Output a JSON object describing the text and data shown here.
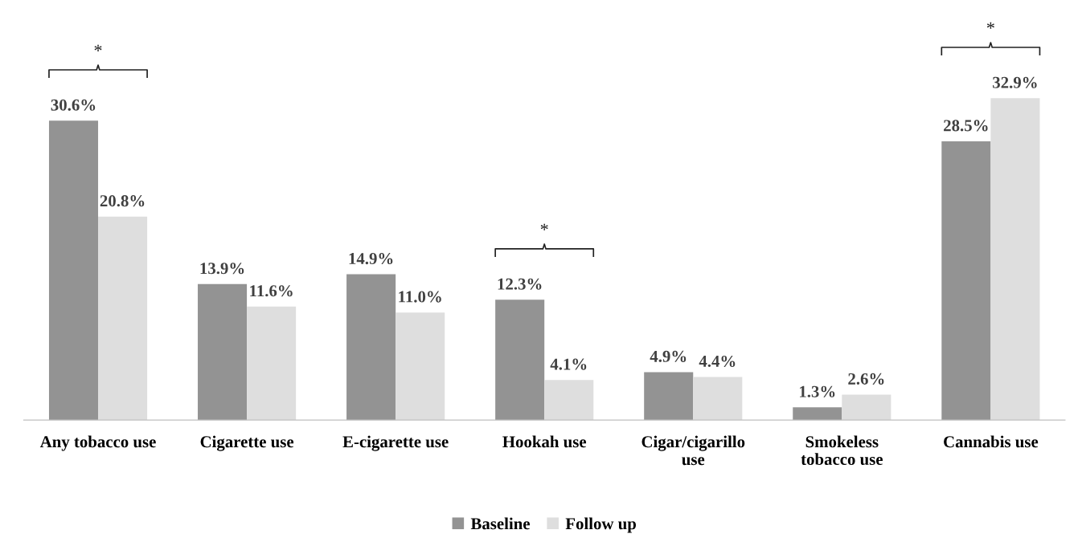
{
  "chart_data": {
    "type": "bar",
    "categories": [
      "Any tobacco use",
      "Cigarette use",
      "E-cigarette use",
      "Hookah use",
      "Cigar/cigarillo\nuse",
      "Smokeless\ntobacco use",
      "Cannabis use"
    ],
    "series": [
      {
        "name": "Baseline",
        "color": "#939393",
        "values": [
          30.6,
          13.9,
          14.9,
          12.3,
          4.9,
          1.3,
          28.5
        ],
        "value_labels": [
          "30.6%",
          "13.9%",
          "14.9%",
          "12.3%",
          "4.9%",
          "1.3%",
          "28.5%"
        ]
      },
      {
        "name": "Follow up",
        "color": "#dedede",
        "values": [
          20.8,
          11.6,
          11.0,
          4.1,
          4.4,
          2.6,
          32.9
        ],
        "value_labels": [
          "20.8%",
          "11.6%",
          "11.0%",
          "4.1%",
          "4.4%",
          "2.6%",
          "32.9%"
        ]
      }
    ],
    "annotations": [
      "*",
      "*",
      "*"
    ],
    "legend": "bottom",
    "grid": false
  }
}
